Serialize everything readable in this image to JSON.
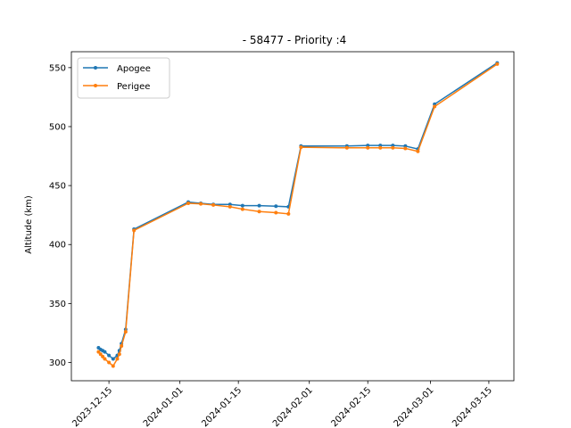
{
  "chart_data": {
    "type": "line",
    "title": "- 58477 - Priority :4",
    "xlabel": "",
    "ylabel": "Altitude (km)",
    "ylim": [
      284.5,
      563.5
    ],
    "xlim": [
      "2023-12-06",
      "2024-03-21"
    ],
    "y_ticks": [
      300,
      350,
      400,
      450,
      500,
      550
    ],
    "x_ticks": [
      "2023-12-15",
      "2024-01-01",
      "2024-01-15",
      "2024-02-01",
      "2024-02-15",
      "2024-03-01",
      "2024-03-15"
    ],
    "legend_position": "top-left",
    "grid": false,
    "series": [
      {
        "name": "Apogee",
        "color": "#1f77b4",
        "x": [
          "2023-12-12T12:00",
          "2023-12-13",
          "2023-12-13T12:00",
          "2023-12-14",
          "2023-12-15",
          "2023-12-16",
          "2023-12-17",
          "2023-12-17T12:00",
          "2023-12-18",
          "2023-12-19",
          "2023-12-21",
          "2024-01-03",
          "2024-01-06",
          "2024-01-09",
          "2024-01-13",
          "2024-01-16",
          "2024-01-20",
          "2024-01-24",
          "2024-01-27",
          "2024-01-30",
          "2024-02-10",
          "2024-02-15",
          "2024-02-18",
          "2024-02-21",
          "2024-02-24",
          "2024-02-27",
          "2024-03-02",
          "2024-03-17"
        ],
        "y": [
          312.5,
          311,
          310,
          309,
          306,
          303,
          306,
          310,
          316,
          328,
          413,
          436,
          435,
          434,
          434,
          433,
          433,
          432.5,
          432,
          483.5,
          483.5,
          484,
          484,
          484,
          483.5,
          481,
          519,
          554
        ]
      },
      {
        "name": "Perigee",
        "color": "#ff7f0e",
        "x": [
          "2023-12-12T12:00",
          "2023-12-13",
          "2023-12-13T12:00",
          "2023-12-14",
          "2023-12-15",
          "2023-12-16",
          "2023-12-17",
          "2023-12-17T12:00",
          "2023-12-18",
          "2023-12-19",
          "2023-12-21",
          "2024-01-03",
          "2024-01-06",
          "2024-01-09",
          "2024-01-13",
          "2024-01-16",
          "2024-01-20",
          "2024-01-24",
          "2024-01-27",
          "2024-01-30",
          "2024-02-10",
          "2024-02-15",
          "2024-02-18",
          "2024-02-21",
          "2024-02-24",
          "2024-02-27",
          "2024-03-02",
          "2024-03-17"
        ],
        "y": [
          309,
          307,
          305,
          303,
          300,
          297,
          303,
          307,
          314,
          326,
          412,
          435,
          434.5,
          433.5,
          432,
          430,
          428,
          427,
          426,
          482.5,
          482,
          482,
          482,
          482,
          481.5,
          479,
          517,
          553
        ]
      }
    ]
  }
}
